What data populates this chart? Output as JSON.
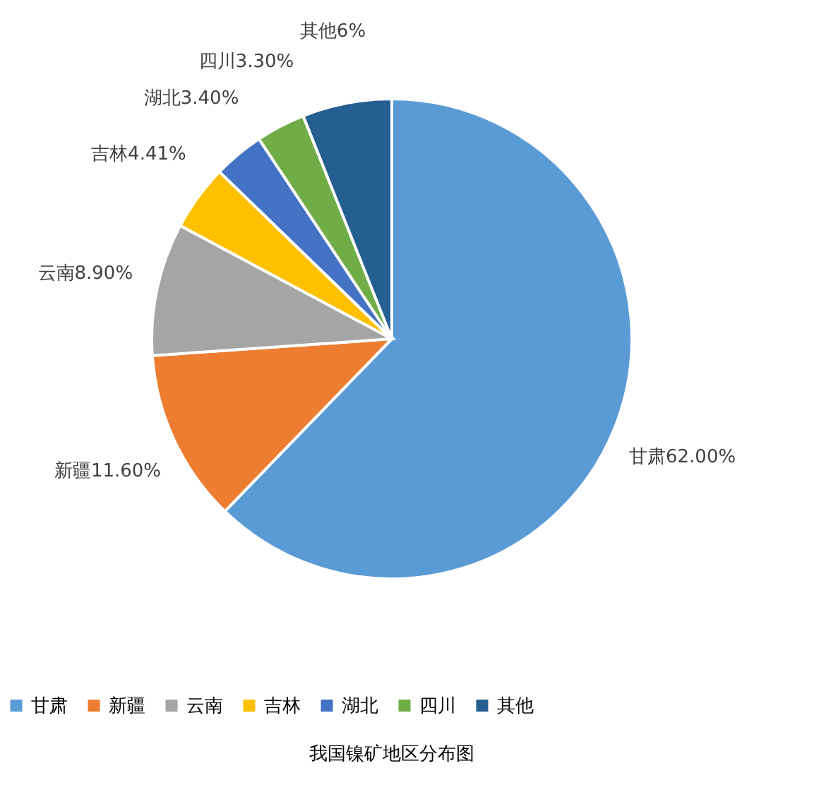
{
  "chart_data": {
    "type": "pie",
    "title": "我国镍矿地区分布图",
    "categories": [
      "甘肃",
      "新疆",
      "云南",
      "吉林",
      "湖北",
      "四川",
      "其他"
    ],
    "values": [
      62.0,
      11.6,
      8.9,
      4.41,
      3.4,
      3.3,
      6
    ],
    "colors": [
      "#5b9bd5",
      "#ed7d31",
      "#a5a5a5",
      "#ffc000",
      "#4472c4",
      "#70ad47",
      "#255e91"
    ],
    "value_labels": [
      "甘肃62.00%",
      "新疆11.60%",
      "云南8.90%",
      "吉林4.41%",
      "湖北3.40%",
      "四川3.30%",
      "其他6%"
    ],
    "legend": "bottom"
  }
}
